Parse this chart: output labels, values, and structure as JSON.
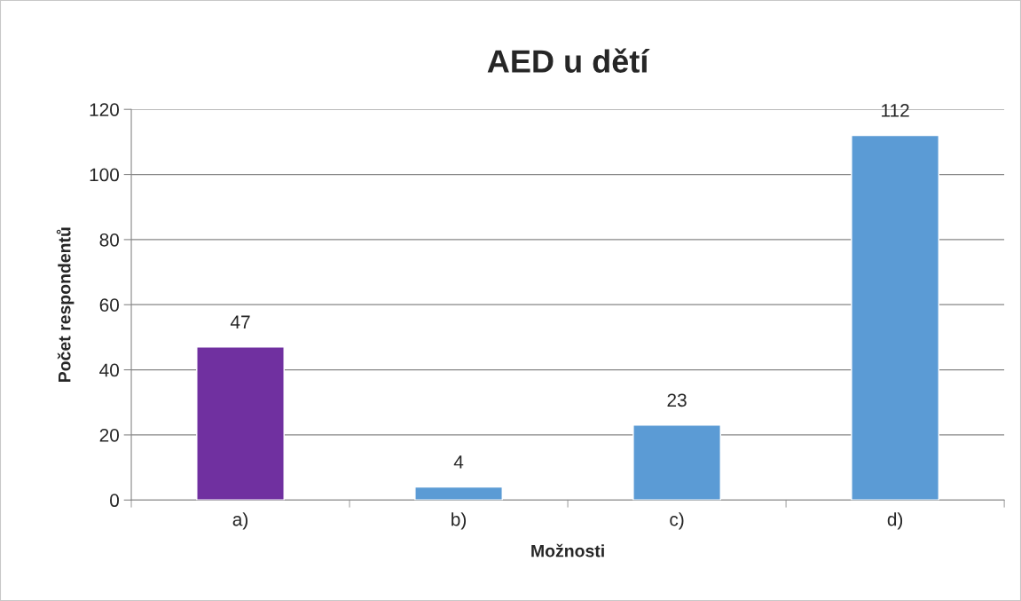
{
  "chart_data": {
    "type": "bar",
    "title": "AED u dětí",
    "xlabel": "Možnosti",
    "ylabel": "Počet respondentů",
    "categories": [
      "a)",
      "b)",
      "c)",
      "d)"
    ],
    "values": [
      47,
      4,
      23,
      112
    ],
    "colors": [
      "#7030a0",
      "#5b9bd5",
      "#5b9bd5",
      "#5b9bd5"
    ],
    "ylim": [
      0,
      120
    ],
    "yticks": [
      0,
      20,
      40,
      60,
      80,
      100,
      120
    ],
    "grid": "y",
    "data_labels": true
  }
}
